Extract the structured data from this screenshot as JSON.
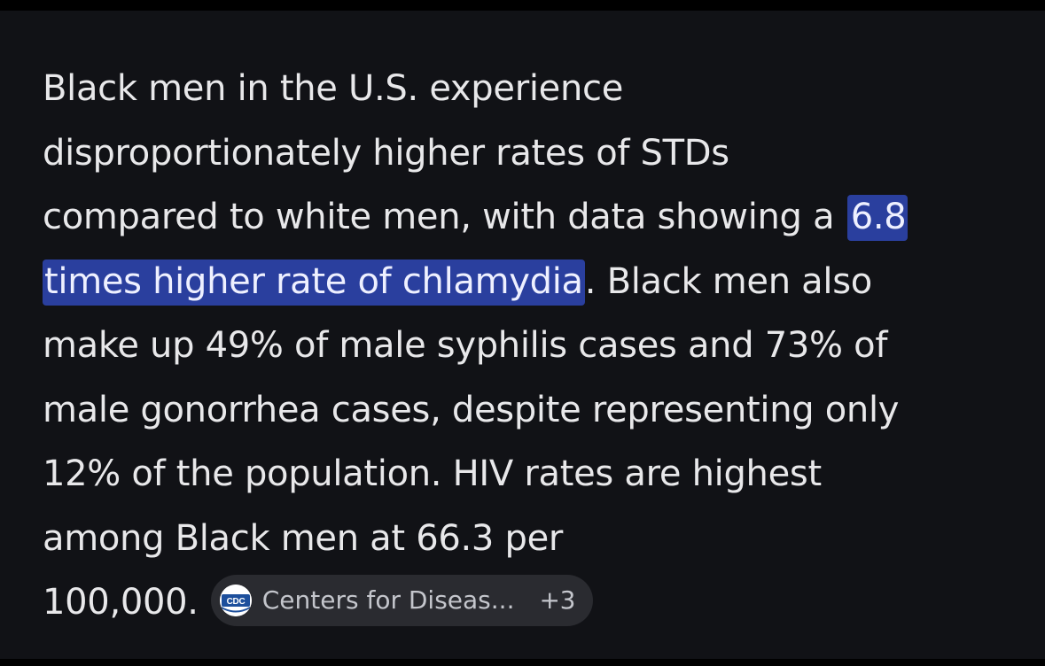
{
  "answer": {
    "line1": "Black men in the U.S. experience",
    "line2": "disproportionately higher rates of STDs",
    "line3_plain": "compared to white men, with data showing a",
    "line3_highlight": "6.8",
    "line4_highlight": "times higher rate of chlamydia",
    "line4_plain": ". Black men also",
    "line5": "make up 49% of male syphilis cases and 73% of",
    "line6": "male gonorrhea cases, despite representing only",
    "line7": "12% of the population. HIV rates are highest",
    "line8": "among Black men at 66.3 per",
    "line9": "100,000."
  },
  "source_chip": {
    "logo_text": "CDC",
    "label": "Centers for Diseas...",
    "count": "+3",
    "icon": "cdc-logo-icon"
  },
  "colors": {
    "background": "#111216",
    "text": "#e8e8ea",
    "highlight": "#2a3f9e",
    "chip": "#2a2b30",
    "cdc_blue": "#1d4f9c"
  }
}
